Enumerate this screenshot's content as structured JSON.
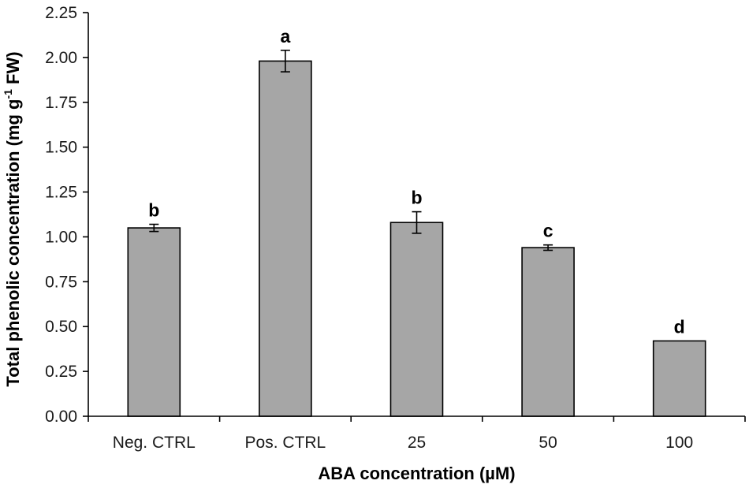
{
  "chart_data": {
    "type": "bar",
    "title": "",
    "xlabel": "ABA concentration (µM)",
    "ylabel": {
      "prefix": "Total phenolic concentration (mg g",
      "superscript": "-1",
      "suffix": " FW)"
    },
    "categories": [
      "Neg. CTRL",
      "Pos. CTRL",
      "25",
      "50",
      "100"
    ],
    "values": [
      1.05,
      1.98,
      1.08,
      0.94,
      0.42
    ],
    "errors": [
      0.02,
      0.06,
      0.06,
      0.015,
      0.0
    ],
    "significance_letters": [
      "b",
      "a",
      "b",
      "c",
      "d"
    ],
    "ylim": [
      0,
      2.25
    ],
    "yticks": [
      "0.00",
      "0.25",
      "0.50",
      "0.75",
      "1.00",
      "1.25",
      "1.50",
      "1.75",
      "2.00",
      "2.25"
    ],
    "grid": false,
    "legend": "none"
  },
  "colors": {
    "bar_fill": "#a6a6a6",
    "bar_stroke": "#000000",
    "axis": "#000000",
    "text": "#1a1a1a"
  }
}
